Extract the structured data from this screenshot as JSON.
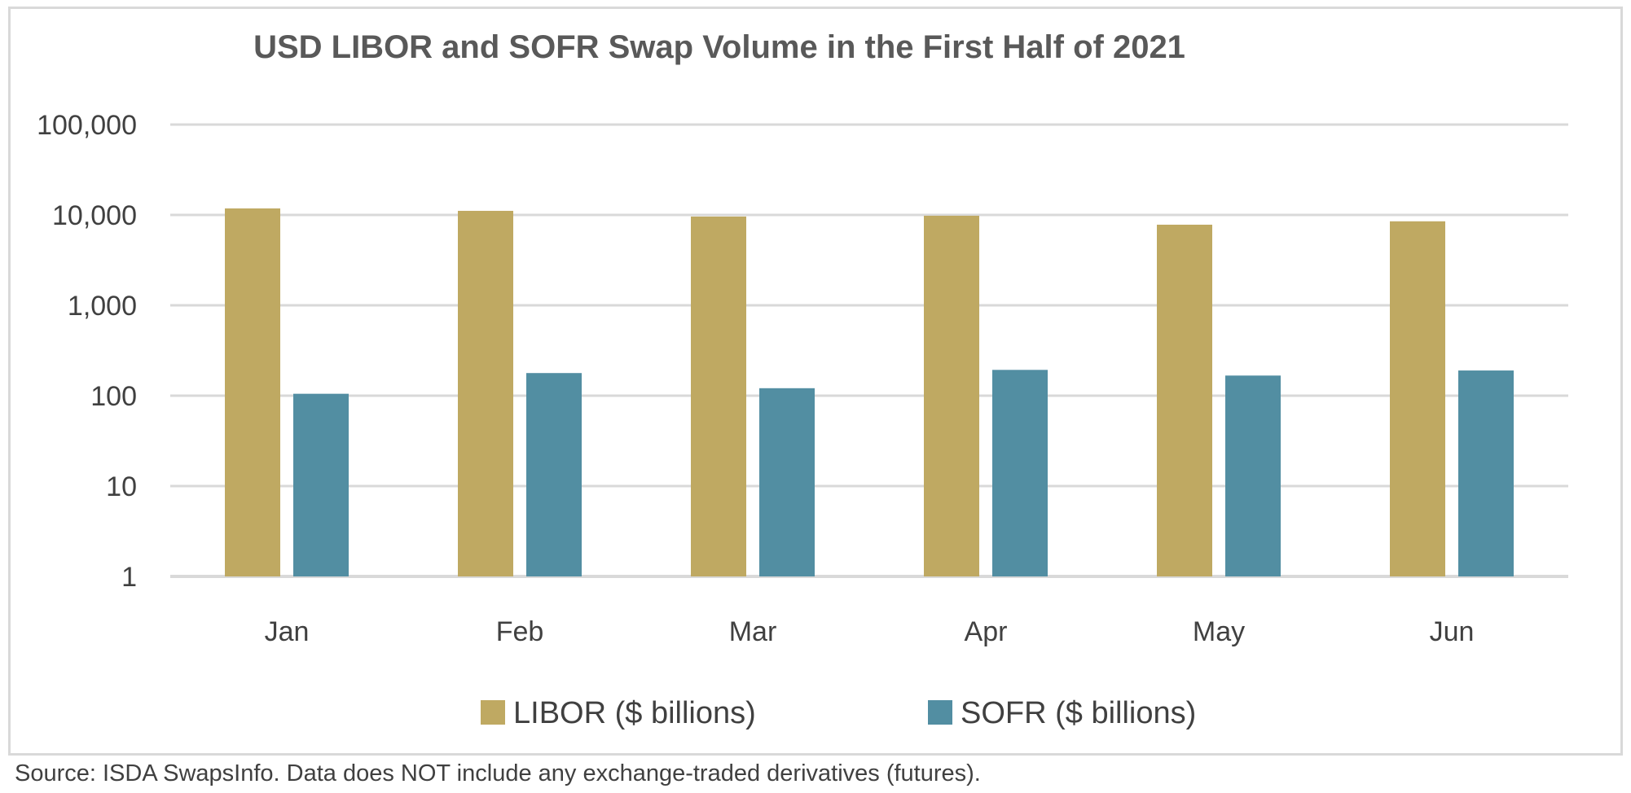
{
  "chart_data": {
    "type": "bar",
    "title": "USD LIBOR and SOFR Swap Volume in the First Half of 2021",
    "xlabel": "",
    "ylabel": "",
    "categories": [
      "Jan",
      "Feb",
      "Mar",
      "Apr",
      "May",
      "Jun"
    ],
    "series": [
      {
        "name": "LIBOR ($ billions)",
        "color": "#bfa962",
        "values": [
          11800,
          11100,
          9600,
          9800,
          7800,
          8500
        ]
      },
      {
        "name": "SOFR ($ billions)",
        "color": "#528ea2",
        "values": [
          105,
          178,
          121,
          193,
          167,
          190
        ]
      }
    ],
    "y_scale": "log",
    "ylim": [
      1,
      100000
    ],
    "y_ticks": [
      1,
      10,
      100,
      1000,
      10000,
      100000
    ],
    "y_tick_labels": [
      "1",
      "10",
      "100",
      "1,000",
      "10,000",
      "100,000"
    ],
    "grid": true,
    "gridline_color": "#d9d9d9",
    "legend_position": "bottom"
  },
  "source_note": "Source: ISDA SwapsInfo. Data does NOT include any exchange-traded derivatives (futures)."
}
